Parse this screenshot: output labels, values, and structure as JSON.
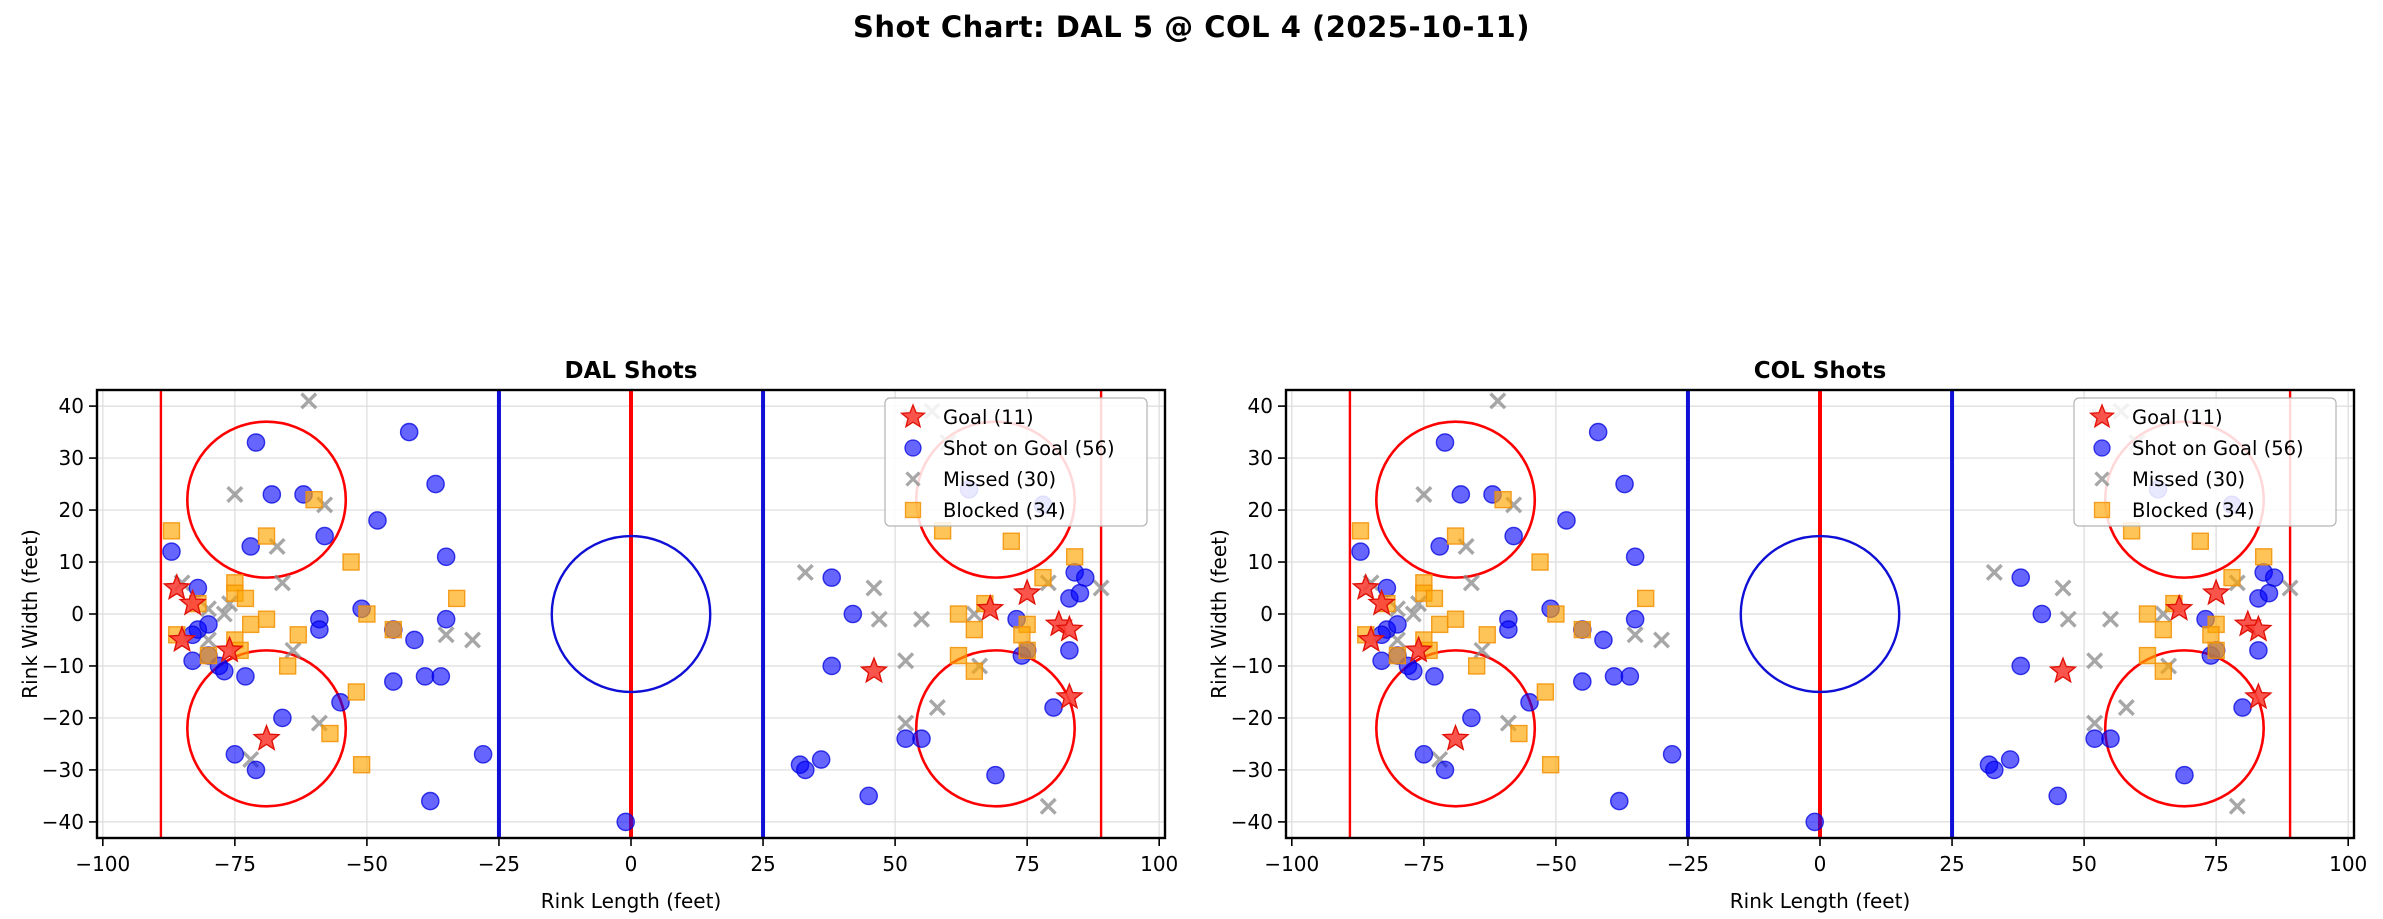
{
  "header": {
    "title": "Shot Chart: DAL 5 @ COL 4 (2025-10-11)"
  },
  "chart_data": {
    "type": "scatter",
    "note": "Two side-by-side rink scatter subplots; both subplots display the identical set of shot locations and identical legends.",
    "subplots": [
      {
        "title": "DAL Shots"
      },
      {
        "title": "COL Shots"
      }
    ],
    "xlabel": "Rink Length (feet)",
    "ylabel": "Rink Width (feet)",
    "xlim": [
      -101.1,
      101.1
    ],
    "ylim": [
      -43.1,
      43.1
    ],
    "xticks": [
      -100,
      -75,
      -50,
      -25,
      0,
      25,
      50,
      75,
      100
    ],
    "yticks": [
      -40,
      -30,
      -20,
      -10,
      0,
      10,
      20,
      30,
      40
    ],
    "grid": true,
    "legend_position": "upper right",
    "legend": {
      "entries": [
        "Goal (11)",
        "Shot on Goal (56)",
        "Missed (30)",
        "Blocked (34)"
      ]
    },
    "series": [
      {
        "name": "Goal (11)",
        "marker": "star",
        "color": "#fa423a",
        "edge": "#e01208",
        "count": 11,
        "points": [
          [
            -86,
            5
          ],
          [
            -83,
            2
          ],
          [
            -85,
            -5
          ],
          [
            -76,
            -7
          ],
          [
            -69,
            -24
          ],
          [
            46,
            -11
          ],
          [
            68,
            1
          ],
          [
            75,
            4
          ],
          [
            81,
            -2
          ],
          [
            83,
            -3
          ],
          [
            83,
            -16
          ]
        ]
      },
      {
        "name": "Shot on Goal (56)",
        "marker": "circle",
        "color": "#0000ff",
        "edge": "#0000dd",
        "count": 56,
        "points": [
          [
            -71,
            33
          ],
          [
            -42,
            35
          ],
          [
            -37,
            25
          ],
          [
            -68,
            23
          ],
          [
            -62,
            23
          ],
          [
            -48,
            18
          ],
          [
            -87,
            12
          ],
          [
            -72,
            13
          ],
          [
            -58,
            15
          ],
          [
            -35,
            11
          ],
          [
            -82,
            5
          ],
          [
            -51,
            1
          ],
          [
            -35,
            -1
          ],
          [
            -59,
            -1
          ],
          [
            -59,
            -3
          ],
          [
            -82,
            -3
          ],
          [
            -80,
            -2
          ],
          [
            -83,
            -4
          ],
          [
            -83,
            -9
          ],
          [
            -80,
            -8
          ],
          [
            -78,
            -10
          ],
          [
            -77,
            -11
          ],
          [
            -73,
            -12
          ],
          [
            -45,
            -3
          ],
          [
            -41,
            -5
          ],
          [
            -45,
            -13
          ],
          [
            -39,
            -12
          ],
          [
            -36,
            -12
          ],
          [
            -55,
            -17
          ],
          [
            -66,
            -20
          ],
          [
            -75,
            -27
          ],
          [
            -71,
            -30
          ],
          [
            -28,
            -27
          ],
          [
            -38,
            -36
          ],
          [
            -1,
            -40
          ],
          [
            38,
            7
          ],
          [
            42,
            0
          ],
          [
            38,
            -10
          ],
          [
            52,
            -24
          ],
          [
            55,
            -24
          ],
          [
            32,
            -29
          ],
          [
            33,
            -30
          ],
          [
            36,
            -28
          ],
          [
            45,
            -35
          ],
          [
            69,
            -31
          ],
          [
            64,
            24
          ],
          [
            78,
            21
          ],
          [
            84,
            8
          ],
          [
            86,
            7
          ],
          [
            83,
            3
          ],
          [
            85,
            4
          ],
          [
            73,
            -1
          ],
          [
            83,
            -7
          ],
          [
            74,
            -8
          ],
          [
            75,
            -7
          ],
          [
            80,
            -18
          ]
        ]
      },
      {
        "name": "Missed (30)",
        "marker": "x",
        "color": "#8a8a8a",
        "count": 30,
        "points": [
          [
            -61,
            41
          ],
          [
            -75,
            23
          ],
          [
            -58,
            21
          ],
          [
            -67,
            13
          ],
          [
            -66,
            6
          ],
          [
            -85,
            6
          ],
          [
            -80,
            1
          ],
          [
            -77,
            0
          ],
          [
            -76,
            2
          ],
          [
            -80,
            -5
          ],
          [
            -64,
            -7
          ],
          [
            -35,
            -4
          ],
          [
            -30,
            -5
          ],
          [
            -59,
            -21
          ],
          [
            -72,
            -28
          ],
          [
            53,
            38
          ],
          [
            57,
            39
          ],
          [
            60,
            33
          ],
          [
            33,
            8
          ],
          [
            46,
            5
          ],
          [
            47,
            -1
          ],
          [
            55,
            -1
          ],
          [
            65,
            0
          ],
          [
            52,
            -9
          ],
          [
            66,
            -10
          ],
          [
            52,
            -21
          ],
          [
            58,
            -18
          ],
          [
            79,
            6
          ],
          [
            89,
            5
          ],
          [
            79,
            -37
          ]
        ]
      },
      {
        "name": "Blocked (34)",
        "marker": "square",
        "color": "#ffa500",
        "edge": "#f29104",
        "count": 34,
        "points": [
          [
            -87,
            16
          ],
          [
            -60,
            22
          ],
          [
            -69,
            15
          ],
          [
            -53,
            10
          ],
          [
            -75,
            6
          ],
          [
            -75,
            4
          ],
          [
            -82,
            2
          ],
          [
            -73,
            3
          ],
          [
            -33,
            3
          ],
          [
            -50,
            0
          ],
          [
            -72,
            -2
          ],
          [
            -69,
            -1
          ],
          [
            -86,
            -4
          ],
          [
            -75,
            -5
          ],
          [
            -74,
            -7
          ],
          [
            -80,
            -8
          ],
          [
            -63,
            -4
          ],
          [
            -65,
            -10
          ],
          [
            -45,
            -3
          ],
          [
            -52,
            -15
          ],
          [
            -57,
            -23
          ],
          [
            -51,
            -29
          ],
          [
            59,
            16
          ],
          [
            72,
            14
          ],
          [
            84,
            11
          ],
          [
            78,
            7
          ],
          [
            67,
            2
          ],
          [
            62,
            0
          ],
          [
            65,
            -3
          ],
          [
            75,
            -2
          ],
          [
            74,
            -4
          ],
          [
            62,
            -8
          ],
          [
            65,
            -11
          ],
          [
            75,
            -7
          ]
        ]
      }
    ],
    "rink": {
      "goal_lines_x": [
        -89,
        89
      ],
      "blue_lines_x": [
        -25,
        25
      ],
      "center_line_x": 0,
      "center_circle": {
        "x": 0,
        "y": 0,
        "r": 15
      },
      "faceoff_circles": [
        [
          -69,
          22
        ],
        [
          -69,
          -22
        ],
        [
          69,
          22
        ],
        [
          69,
          -22
        ]
      ],
      "faceoff_radius": 15,
      "red_color": "#ff0000",
      "blue_color": "#0f0fd6",
      "grid_color": "#dcdcdc",
      "border_color": "#000000"
    }
  }
}
